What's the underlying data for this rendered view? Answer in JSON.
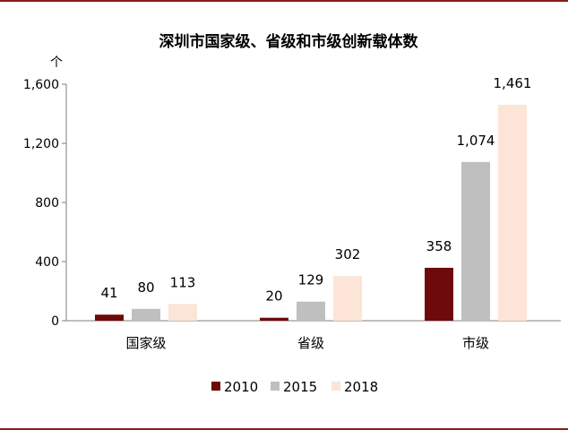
{
  "chart_data": {
    "type": "bar",
    "title": "深圳市国家级、省级和市级创新载体数",
    "ylabel": "个",
    "xlabel": "",
    "categories": [
      "国家级",
      "省级",
      "市级"
    ],
    "series": [
      {
        "name": "2010",
        "values": [
          41,
          20,
          358
        ],
        "labels": [
          "41",
          "20",
          "358"
        ],
        "color": "#6e0a0a"
      },
      {
        "name": "2015",
        "values": [
          80,
          129,
          1074
        ],
        "labels": [
          "80",
          "129",
          "1,074"
        ],
        "color": "#bfbfbf"
      },
      {
        "name": "2018",
        "values": [
          113,
          302,
          1461
        ],
        "labels": [
          "113",
          "302",
          "1,461"
        ],
        "color": "#fce4d6"
      }
    ],
    "ylim": [
      0,
      1600
    ],
    "yticks": [
      0,
      400,
      800,
      1200,
      1600
    ],
    "ytick_labels": [
      "0",
      "400",
      "800",
      "1,200",
      "1,600"
    ],
    "grid": false,
    "legend_position": "bottom"
  },
  "frame": {
    "border_color": "#8b1a1a"
  }
}
